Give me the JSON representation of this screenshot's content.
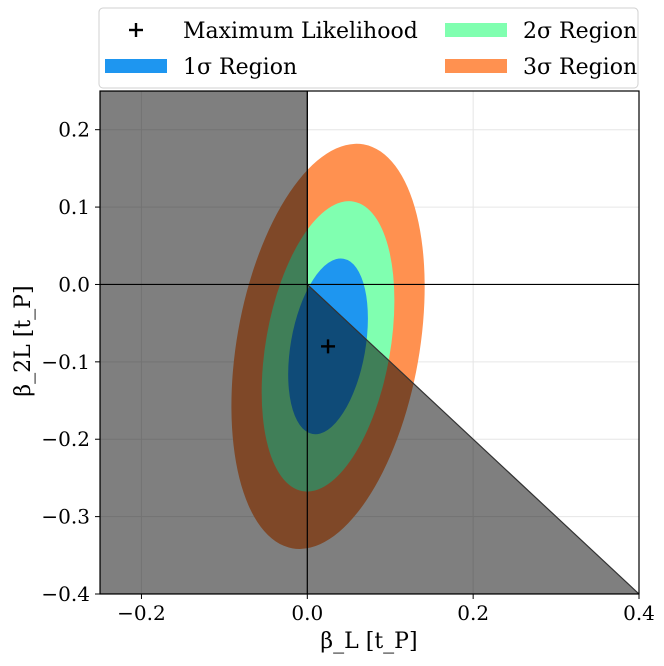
{
  "chart_data": {
    "type": "contour",
    "title": "",
    "xlabel": "β_L  [t_P]",
    "ylabel": "β_2L  [t_P]",
    "xlim": [
      -0.25,
      0.4
    ],
    "ylim": [
      -0.4,
      0.25
    ],
    "xticks": [
      -0.2,
      0.0,
      0.2,
      0.4
    ],
    "yticks": [
      -0.4,
      -0.3,
      -0.2,
      -0.1,
      0.0,
      0.1,
      0.2
    ],
    "xtick_labels": [
      "−0.2",
      "0.0",
      "0.2",
      "0.4"
    ],
    "ytick_labels": [
      "−0.4",
      "−0.3",
      "−0.2",
      "−0.1",
      "0.0",
      "0.1",
      "0.2"
    ],
    "grid": true,
    "max_likelihood": {
      "label": "Maximum Likelihood",
      "x": 0.025,
      "y": -0.08
    },
    "regions": [
      {
        "name": "3σ Region",
        "sigma": 3,
        "color": "#ff9150",
        "center": [
          0.025,
          -0.08
        ],
        "half_x": 0.11,
        "half_y": 0.265,
        "tilt_deg": 10
      },
      {
        "name": "2σ Region",
        "sigma": 2,
        "color": "#80ffb0",
        "center": [
          0.025,
          -0.08
        ],
        "half_x": 0.075,
        "half_y": 0.19,
        "tilt_deg": 10
      },
      {
        "name": "1σ Region",
        "sigma": 1,
        "color": "#1e96f0",
        "center": [
          0.025,
          -0.08
        ],
        "half_x": 0.045,
        "half_y": 0.115,
        "tilt_deg": 10
      }
    ],
    "excluded_region": {
      "color": "#000000",
      "opacity": 0.5,
      "vertices": [
        [
          -0.25,
          0.25
        ],
        [
          0.0,
          0.25
        ],
        [
          0.0,
          0.0
        ],
        [
          0.4,
          -0.4
        ],
        [
          -0.25,
          -0.4
        ]
      ]
    },
    "reference_lines": {
      "x": 0.0,
      "y": 0.0
    },
    "legend": {
      "placement": "top",
      "entries": [
        {
          "label": "Maximum Likelihood",
          "kind": "marker"
        },
        {
          "label": "2σ Region",
          "kind": "patch",
          "color": "#80ffb0"
        },
        {
          "label": "1σ Region",
          "kind": "patch",
          "color": "#1e96f0"
        },
        {
          "label": "3σ Region",
          "kind": "patch",
          "color": "#ff9150"
        }
      ]
    }
  }
}
